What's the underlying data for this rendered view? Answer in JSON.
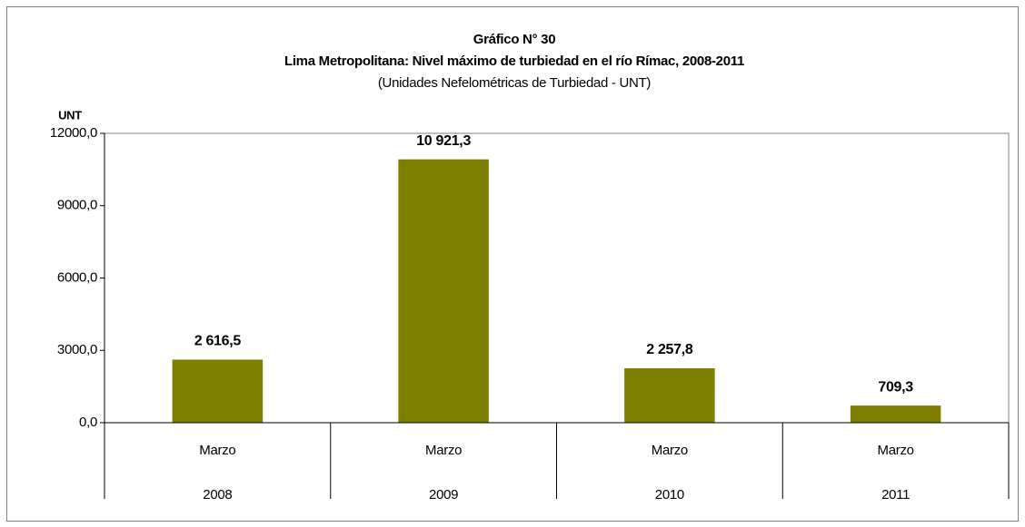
{
  "chart_data": {
    "type": "bar",
    "title": "Gráfico N° 30",
    "subtitle": "Lima Metropolitana: Nivel máximo de turbiedad en el río Rímac, 2008-2011",
    "note": "(Unidades Nefelométricas de Turbiedad - UNT)",
    "ylabel": "UNT",
    "categories": [
      [
        "Marzo",
        "2008"
      ],
      [
        "Marzo",
        "2009"
      ],
      [
        "Marzo",
        "2010"
      ],
      [
        "Marzo",
        "2011"
      ]
    ],
    "values": [
      2616.5,
      10921.3,
      2257.8,
      709.3
    ],
    "value_labels": [
      "2 616,5",
      "10 921,3",
      "2 257,8",
      "709,3"
    ],
    "color": "#808000",
    "ylim": [
      0,
      12000
    ],
    "yticks": [
      {
        "value": 0,
        "label": "0,0"
      },
      {
        "value": 3000,
        "label": "3000,0"
      },
      {
        "value": 6000,
        "label": "6000,0"
      },
      {
        "value": 9000,
        "label": "9000,0"
      },
      {
        "value": 12000,
        "label": "12000,0"
      }
    ],
    "grid": false
  }
}
